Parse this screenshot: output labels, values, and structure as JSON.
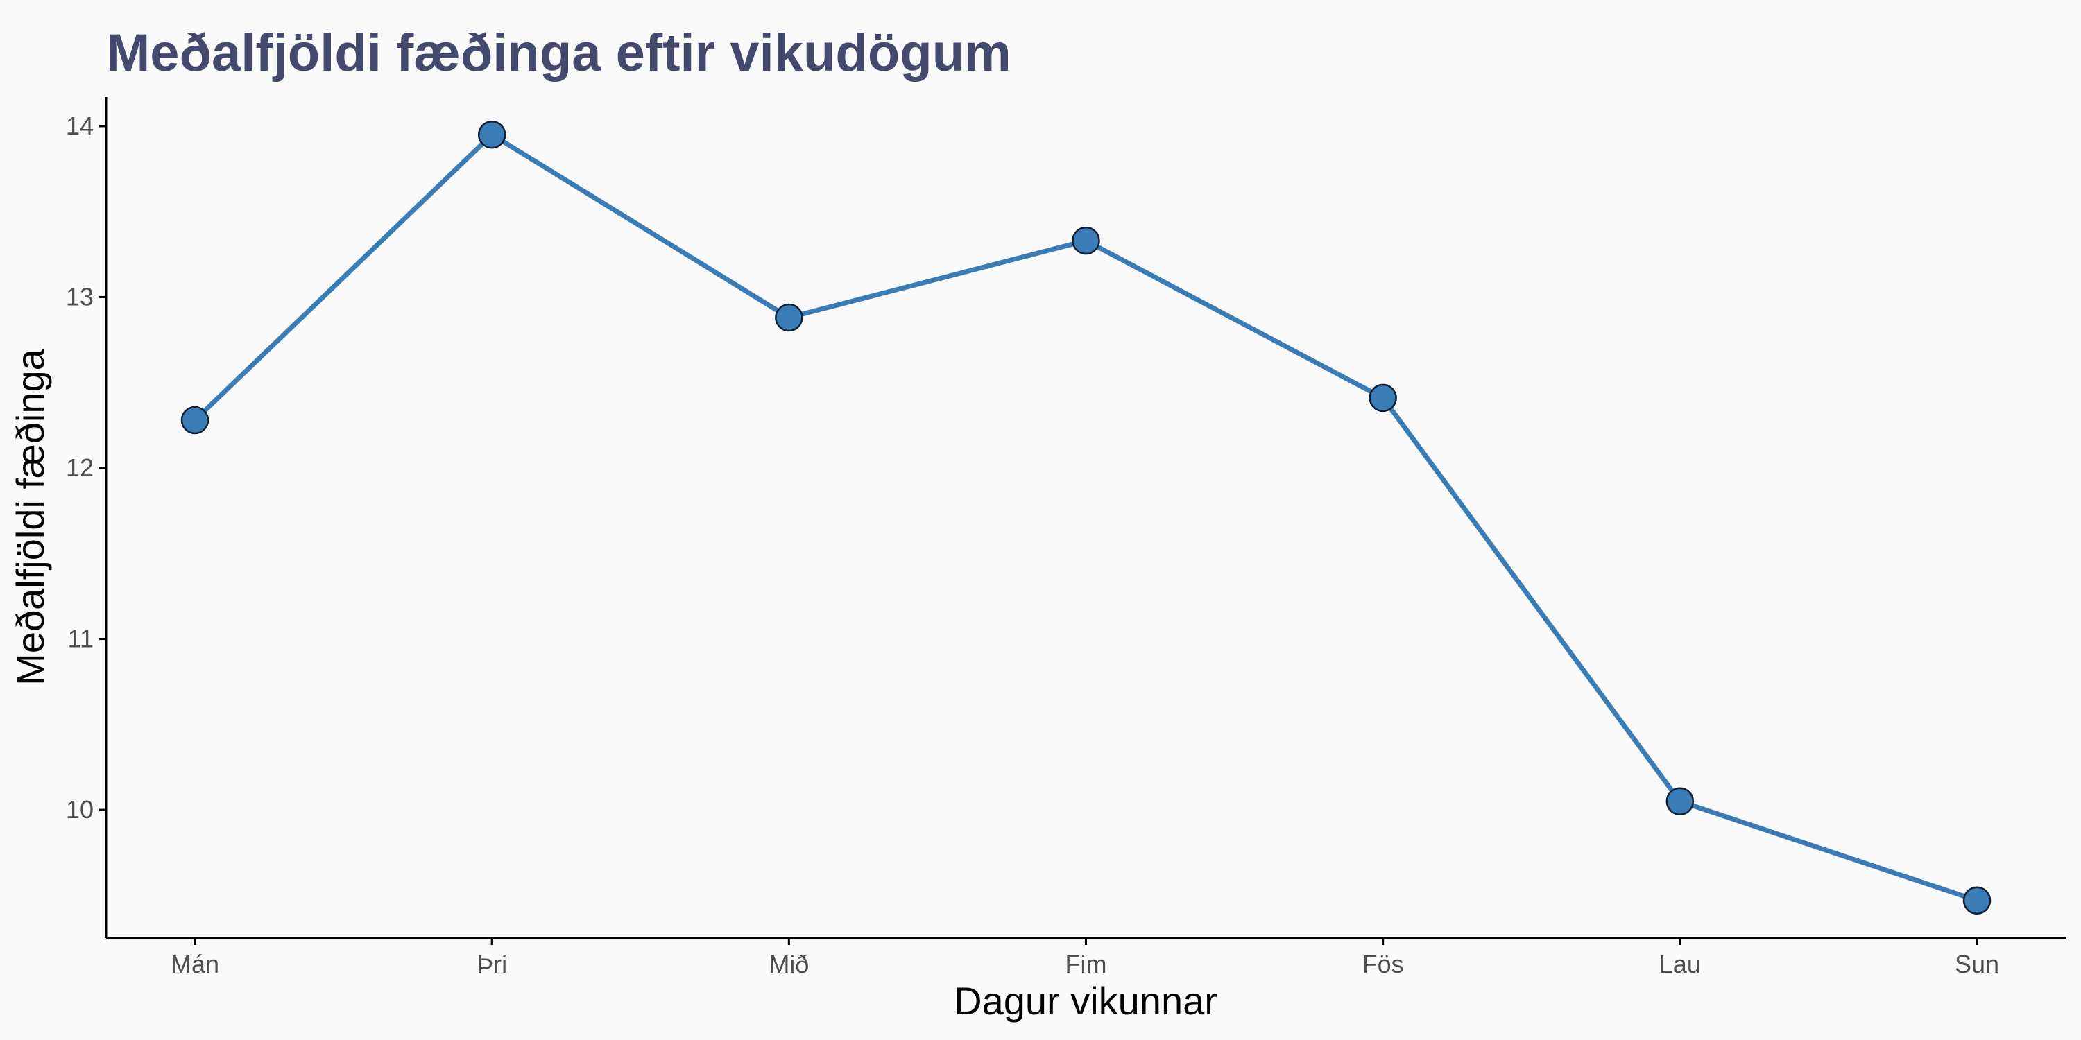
{
  "chart_data": {
    "type": "line",
    "title": "Meðalfjöldi fæðinga eftir vikudögum",
    "xlabel": "Dagur vikunnar",
    "ylabel": "Meðalfjöldi fæðinga",
    "categories": [
      "Mán",
      "Þri",
      "Mið",
      "Fim",
      "Fös",
      "Lau",
      "Sun"
    ],
    "series": [
      {
        "values": [
          12.28,
          13.95,
          12.88,
          13.33,
          12.41,
          10.05,
          9.47
        ]
      }
    ],
    "ylim": [
      9.25,
      14.17
    ],
    "yticks": [
      10,
      11,
      12,
      13,
      14
    ],
    "grid": false,
    "colors": {
      "title": "#434A6E",
      "line": "#3A7CB5",
      "point_fill": "#3A7CB5",
      "point_stroke": "#0F1E33",
      "axis": "#000000",
      "background": "#FAFAFA"
    }
  }
}
